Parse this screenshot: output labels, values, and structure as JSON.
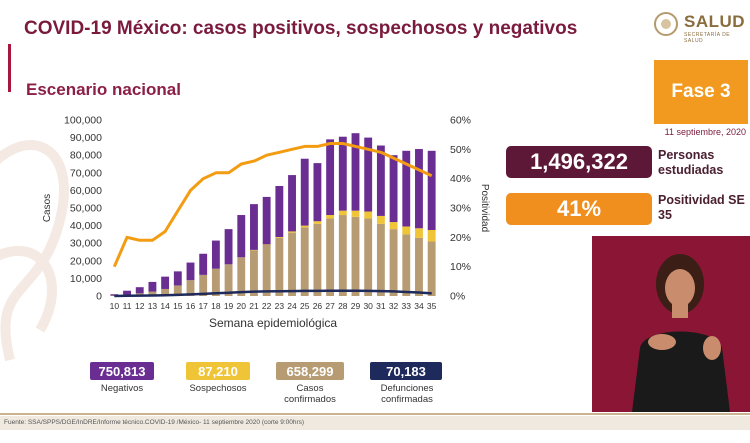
{
  "header": {
    "title": "COVID-19 México: casos positivos, sospechosos y negativos",
    "subtitle": "Escenario nacional",
    "logo_text": "SALUD",
    "logo_sub": "SECRETARÍA DE SALUD"
  },
  "phase": {
    "label": "Fase 3",
    "date": "11 septiembre, 2020"
  },
  "kpis": [
    {
      "value": "1,496,322",
      "label": "Personas estudiadas",
      "color": "#5d1737"
    },
    {
      "value": "41%",
      "label": "Positividad SE 35",
      "color": "#f08f1e"
    }
  ],
  "totals": [
    {
      "value": "750,813",
      "label": "Negativos",
      "color": "#6a2d92"
    },
    {
      "value": "87,210",
      "label": "Sospechosos",
      "color": "#f0c437"
    },
    {
      "value": "658,299",
      "label": "Casos confirmados",
      "color": "#b79b72"
    },
    {
      "value": "70,183",
      "label": "Defunciones confirmadas",
      "color": "#1f2a5c"
    }
  ],
  "source": "Fuente: SSA/SPPS/DGE/InDRE/Informe técnico.COVID-19 /México- 11 septiembre 2020 (corte 9:00hrs)",
  "chart_data": {
    "type": "bar",
    "stacked": true,
    "xlabel": "Semana epidemiológica",
    "ylabel": "Casos",
    "y2label": "Positividad",
    "categories": [
      "10",
      "11",
      "12",
      "13",
      "14",
      "15",
      "16",
      "17",
      "18",
      "19",
      "20",
      "21",
      "22",
      "23",
      "24",
      "25",
      "26",
      "27",
      "28",
      "29",
      "30",
      "31",
      "32",
      "33",
      "34",
      "35"
    ],
    "ylim": [
      0,
      100000
    ],
    "yticks": [
      "0",
      "10,000",
      "20,000",
      "30,000",
      "40,000",
      "50,000",
      "60,000",
      "70,000",
      "80,000",
      "90,000",
      "100,000"
    ],
    "y2lim": [
      0,
      60
    ],
    "y2ticks": [
      "0%",
      "10%",
      "20%",
      "30%",
      "40%",
      "50%",
      "60%"
    ],
    "series": [
      {
        "name": "Casos confirmados",
        "color": "#b79b72",
        "values": [
          300,
          700,
          1500,
          2500,
          4000,
          6000,
          9000,
          12000,
          15500,
          18000,
          22000,
          26000,
          29000,
          33000,
          36000,
          39000,
          41000,
          44000,
          46000,
          45000,
          44000,
          41000,
          38000,
          35000,
          33000,
          31000
        ]
      },
      {
        "name": "Sospechosos",
        "color": "#f0c437",
        "values": [
          0,
          0,
          0,
          0,
          0,
          0,
          0,
          0,
          0,
          0,
          0,
          200,
          300,
          500,
          700,
          1000,
          1500,
          2000,
          2500,
          3500,
          4000,
          4500,
          4000,
          4500,
          5500,
          6500
        ]
      },
      {
        "name": "Negativos",
        "color": "#6a2d92",
        "values": [
          700,
          2300,
          3500,
          5500,
          7000,
          8000,
          10000,
          12000,
          16000,
          20000,
          24000,
          26000,
          27000,
          29000,
          32000,
          38000,
          33000,
          43000,
          42000,
          44000,
          42000,
          40000,
          38000,
          43000,
          45000,
          45000
        ]
      }
    ],
    "lines": [
      {
        "name": "Defunciones",
        "color": "#1f2a5c",
        "axis": "left",
        "values": [
          0,
          100,
          200,
          300,
          400,
          600,
          900,
          1200,
          1600,
          1800,
          2200,
          2500,
          2600,
          2700,
          2800,
          2900,
          2900,
          3000,
          3000,
          3000,
          2900,
          2800,
          2600,
          2300,
          2000,
          1500
        ]
      },
      {
        "name": "Positividad",
        "color": "#f39c12",
        "axis": "right",
        "values": [
          10,
          20,
          19,
          19,
          22,
          29,
          36,
          40,
          42,
          42,
          45,
          46,
          48,
          49,
          50,
          51,
          51,
          52,
          52,
          51,
          50,
          49,
          47,
          45,
          43,
          41
        ]
      }
    ]
  }
}
